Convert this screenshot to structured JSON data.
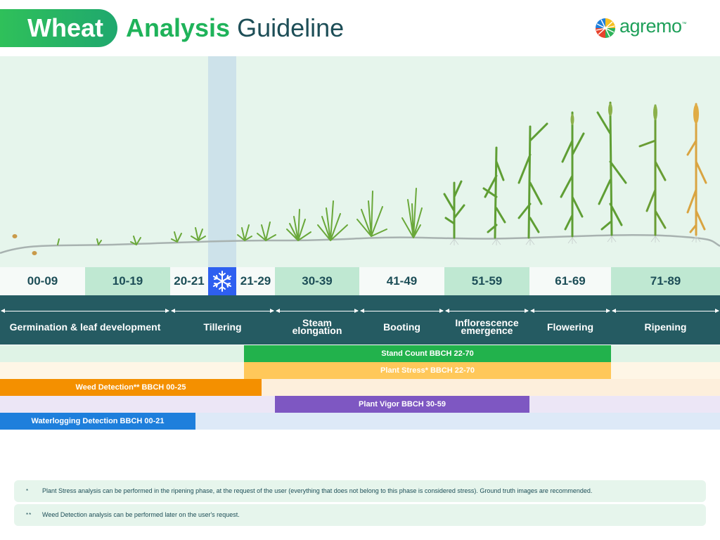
{
  "header": {
    "title_pill": "Wheat",
    "title_word2": "Analysis",
    "title_word3": "Guideline",
    "logo_text": "agremo",
    "logo_tm": "™"
  },
  "stages": [
    {
      "code": "00-09",
      "highlight": false
    },
    {
      "code": "10-19",
      "highlight": true
    },
    {
      "code": "20-21",
      "highlight": false
    },
    {
      "code": "21-29",
      "highlight": false
    },
    {
      "code": "30-39",
      "highlight": true
    },
    {
      "code": "41-49",
      "highlight": false
    },
    {
      "code": "51-59",
      "highlight": true
    },
    {
      "code": "61-69",
      "highlight": false
    },
    {
      "code": "71-89",
      "highlight": true
    }
  ],
  "frost_icon": "snowflake-icon",
  "phases": [
    {
      "label": "Germination & leaf development"
    },
    {
      "label": "Tillering"
    },
    {
      "label": "Steam elongation"
    },
    {
      "label": "Booting"
    },
    {
      "label": "Inflorescence emergence"
    },
    {
      "label": "Flowering"
    },
    {
      "label": "Ripening"
    }
  ],
  "analyses": [
    {
      "label": "Stand Count BBCH 22-70",
      "color": "#22b24c",
      "track": "#dff3e6"
    },
    {
      "label": "Plant Stress* BBCH 22-70",
      "color": "#ffc85a",
      "track": "#fef6e6"
    },
    {
      "label": "Weed Detection** BBCH 00-25",
      "color": "#f49000",
      "track": "#fdefdc"
    },
    {
      "label": "Plant Vigor BBCH 30-59",
      "color": "#7e57c2",
      "track": "#ece6f6"
    },
    {
      "label": "Waterlogging Detection BBCH 00-21",
      "color": "#1e7fdc",
      "track": "#dde9f7"
    }
  ],
  "notes": [
    {
      "mark": "*",
      "text": "Plant Stress analysis can be performed in the ripening phase, at the request of the user (everything that does not belong to this phase is considered stress). Ground truth images are recommended."
    },
    {
      "mark": "**",
      "text": "Weed Detection analysis can be performed later on the user's request."
    }
  ],
  "colors": {
    "dark_teal": "#255b62",
    "brand_green": "#1fb35a",
    "frost_blue": "#2e5ff0",
    "scene_bg": "#e6f5ec"
  }
}
